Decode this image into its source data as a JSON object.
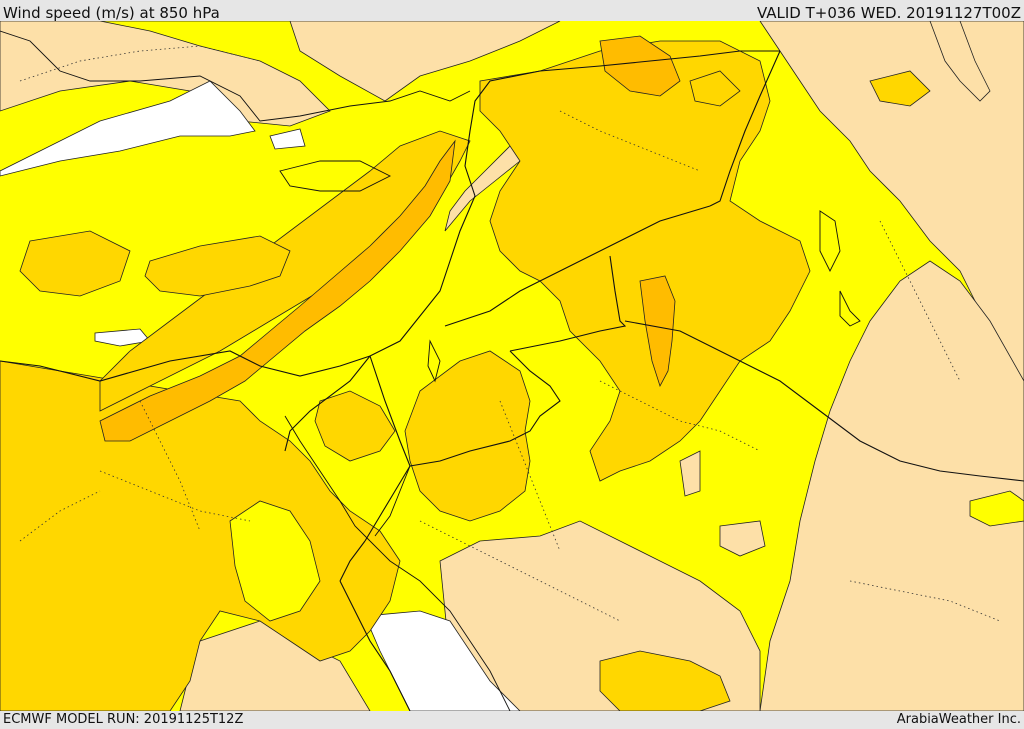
{
  "header": {
    "title": "Wind speed (m/s) at 850 hPa",
    "valid": "VALID T+036 WED. 20191127T00Z"
  },
  "footer": {
    "model_run": "ECMWF MODEL RUN: 20191125T12Z",
    "credit": "ArabiaWeather Inc."
  },
  "palette": {
    "calm": "#ffffff",
    "light": "#fde0a8",
    "moderate": "#ffff00",
    "fresh": "#ffd700",
    "strong": "#ffbc00",
    "contour": "#222222",
    "border": "#111111"
  }
}
